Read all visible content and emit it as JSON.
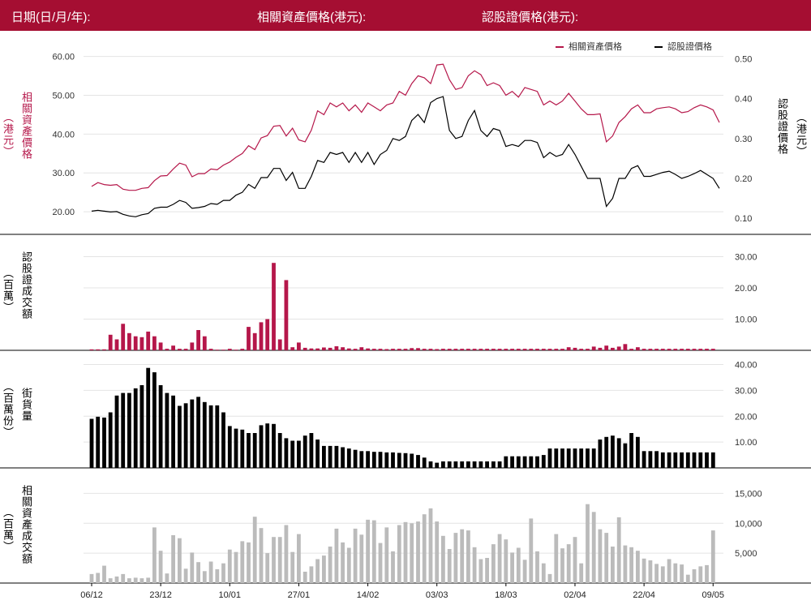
{
  "header": {
    "date_label": "日期(日/月/年):",
    "underlying_label": "相關資產價格(港元):",
    "warrant_label": "認股證價格(港元):"
  },
  "legend": {
    "underlying": "相關資產價格",
    "warrant": "認股證價格"
  },
  "colors": {
    "brand": "#a50e32",
    "underlying": "#b5174a",
    "warrant": "#000000",
    "turnover_bar": "#bbbbbb"
  },
  "axis_titles": {
    "underlying_price_a": "相關資產價格",
    "underlying_price_b": "（港元）",
    "warrant_price_a": "認股證價格",
    "warrant_price_b": "（港元）",
    "warrant_turnover_a": "認股證成交額",
    "warrant_turnover_b": "（百萬）",
    "outstanding_a": "街貨量",
    "outstanding_b": "（百萬份）",
    "underlying_turnover_a": "相關資產成交額",
    "underlying_turnover_b": "（百萬）"
  },
  "chart_data": {
    "type": "line",
    "x_tick_labels": [
      "06/12",
      "23/12",
      "10/01",
      "27/01",
      "14/02",
      "03/03",
      "18/03",
      "02/04",
      "22/04",
      "09/05"
    ],
    "x_tick_index": [
      0,
      11,
      22,
      33,
      44,
      55,
      66,
      77,
      88,
      99
    ],
    "panels": [
      {
        "id": "price",
        "type": "line",
        "series": [
          {
            "name": "相關資產價格",
            "axis": "left",
            "values": [
              26.5,
              27.5,
              27,
              26.8,
              27,
              25.8,
              25.5,
              25.5,
              26,
              26.2,
              28,
              29.2,
              29.3,
              31,
              32.5,
              32,
              29,
              29.8,
              29.8,
              31,
              30.8,
              32,
              32.8,
              34,
              35,
              37,
              36,
              39,
              39.6,
              42,
              42.2,
              39.5,
              41.5,
              38.5,
              38,
              41,
              46,
              45,
              48,
              47,
              48,
              46,
              47.5,
              45.6,
              48,
              47,
              46,
              47.5,
              48,
              51,
              50,
              53,
              55,
              54.5,
              53,
              57.8,
              58,
              54,
              51.5,
              52,
              55,
              56.3,
              55.3,
              52.5,
              53.2,
              52.5,
              50,
              51,
              49.5,
              52,
              51.5,
              51,
              47.5,
              48.5,
              47.5,
              48.5,
              50.5,
              48.5,
              46.5,
              45,
              45,
              45.2,
              38,
              39.5,
              43,
              44.5,
              46.5,
              47.5,
              45.5,
              45.5,
              46.5,
              46.8,
              47,
              46.5,
              45.5,
              45.8,
              46.8,
              47.5,
              47,
              46.2,
              43
            ]
          },
          {
            "name": "認股證價格",
            "axis": "right",
            "values": [
              0.118,
              0.12,
              0.118,
              0.116,
              0.117,
              0.11,
              0.106,
              0.104,
              0.109,
              0.112,
              0.125,
              0.128,
              0.128,
              0.135,
              0.145,
              0.14,
              0.125,
              0.127,
              0.13,
              0.137,
              0.135,
              0.145,
              0.145,
              0.158,
              0.165,
              0.185,
              0.175,
              0.202,
              0.202,
              0.225,
              0.225,
              0.195,
              0.215,
              0.175,
              0.175,
              0.205,
              0.245,
              0.24,
              0.265,
              0.26,
              0.265,
              0.24,
              0.265,
              0.24,
              0.265,
              0.235,
              0.26,
              0.27,
              0.3,
              0.295,
              0.305,
              0.345,
              0.36,
              0.34,
              0.39,
              0.4,
              0.405,
              0.32,
              0.3,
              0.305,
              0.345,
              0.37,
              0.32,
              0.305,
              0.325,
              0.32,
              0.28,
              0.285,
              0.28,
              0.295,
              0.295,
              0.29,
              0.252,
              0.265,
              0.255,
              0.26,
              0.285,
              0.26,
              0.23,
              0.2,
              0.2,
              0.2,
              0.13,
              0.15,
              0.2,
              0.2,
              0.225,
              0.232,
              0.205,
              0.205,
              0.21,
              0.215,
              0.218,
              0.21,
              0.2,
              0.205,
              0.212,
              0.22,
              0.21,
              0.2,
              0.175
            ]
          }
        ],
        "left_axis": {
          "ticks": [
            20,
            30,
            40,
            50,
            60
          ],
          "labels": [
            "20.00",
            "30.00",
            "40.00",
            "50.00",
            "60.00"
          ],
          "range": [
            15,
            62
          ]
        },
        "right_axis": {
          "ticks": [
            0.1,
            0.2,
            0.3,
            0.4,
            0.5
          ],
          "labels": [
            "0.10",
            "0.20",
            "0.30",
            "0.40",
            "0.50"
          ],
          "range": [
            0.068,
            0.525
          ]
        }
      },
      {
        "id": "warrant_turnover",
        "type": "bar",
        "values": [
          0.3,
          0.3,
          0.3,
          5,
          3.5,
          8.5,
          5.5,
          4.5,
          4.2,
          6,
          4.5,
          2.5,
          0.5,
          1.5,
          0.5,
          0.5,
          2.5,
          6.5,
          4.5,
          0.5,
          0.2,
          0.2,
          0.5,
          0.2,
          0.5,
          7.5,
          5.5,
          9,
          10,
          28,
          3.5,
          22.5,
          1,
          2.5,
          0.8,
          0.6,
          0.6,
          0.9,
          0.8,
          1.3,
          1,
          0.6,
          0.5,
          1,
          0.6,
          0.5,
          0.5,
          0.4,
          0.5,
          0.5,
          0.5,
          0.7,
          0.7,
          0.5,
          0.5,
          0.4,
          0.5,
          0.5,
          0.5,
          0.5,
          0.5,
          0.5,
          0.5,
          0.5,
          0.5,
          0.5,
          0.5,
          0.5,
          0.5,
          0.5,
          0.5,
          0.5,
          0.5,
          0.5,
          0.5,
          0.5,
          1,
          0.8,
          0.5,
          0.5,
          1.2,
          0.8,
          1.5,
          0.8,
          1.2,
          2,
          0.5,
          1,
          0.5,
          0.5,
          0.5,
          0.5,
          0.5,
          0.5,
          0.5,
          0.5,
          0.5,
          0.5,
          0.5,
          0.5
        ],
        "right_axis": {
          "ticks": [
            10,
            20,
            30
          ],
          "labels": [
            "10.00",
            "20.00",
            "30.00"
          ],
          "range": [
            0,
            33
          ]
        }
      },
      {
        "id": "outstanding",
        "type": "bar",
        "values": [
          19,
          19.8,
          19.5,
          21.5,
          28,
          29,
          29,
          30.8,
          32,
          38.7,
          37,
          32,
          29,
          28,
          24,
          25,
          26.5,
          27.5,
          25.5,
          24.2,
          24.2,
          21.5,
          16.2,
          15.2,
          14.8,
          13.5,
          13.5,
          16.5,
          17.2,
          17,
          13.5,
          11.5,
          10.5,
          10.5,
          12.5,
          13.5,
          11,
          8.5,
          8.5,
          8.5,
          8,
          7.5,
          7,
          6.5,
          6.5,
          6.2,
          6.2,
          6,
          6,
          5.8,
          5.7,
          5.5,
          5,
          4,
          2.5,
          2,
          2.5,
          2.5,
          2.5,
          2.5,
          2.5,
          2.5,
          2.5,
          2.5,
          2.5,
          2.5,
          4.5,
          4.5,
          4.5,
          4.5,
          4.5,
          4.5,
          5,
          7.5,
          7.5,
          7.5,
          7.5,
          7.5,
          7.5,
          7.5,
          7.5,
          11,
          12,
          12.5,
          11.5,
          9.5,
          13.5,
          12,
          6.5,
          6.5,
          6.5,
          6,
          6,
          6,
          6,
          6,
          6,
          6,
          6,
          6
        ],
        "right_axis": {
          "ticks": [
            10,
            20,
            30,
            40
          ],
          "labels": [
            "10.00",
            "20.00",
            "30.00",
            "40.00"
          ],
          "range": [
            0,
            43
          ]
        }
      },
      {
        "id": "underlying_turnover",
        "type": "bar",
        "values": [
          1500,
          1700,
          2900,
          800,
          1100,
          1500,
          800,
          900,
          800,
          900,
          9300,
          5400,
          1600,
          8000,
          7500,
          2400,
          5100,
          3500,
          2000,
          3600,
          2300,
          3300,
          5600,
          5200,
          7000,
          6800,
          11100,
          9200,
          5000,
          7700,
          7700,
          9700,
          5200,
          8200,
          1900,
          2800,
          4000,
          4600,
          6100,
          9100,
          6800,
          5900,
          9100,
          8100,
          10600,
          10500,
          6700,
          9300,
          5300,
          9700,
          10200,
          10000,
          10300,
          11500,
          12500,
          10300,
          7900,
          5700,
          8400,
          9000,
          8800,
          6000,
          4000,
          4200,
          6500,
          8200,
          7300,
          5100,
          5900,
          3900,
          10800,
          5300,
          3300,
          1500,
          8200,
          5800,
          6500,
          7700,
          3300,
          13200,
          11900,
          9000,
          8400,
          6100,
          11000,
          6300,
          6000,
          5400,
          4100,
          3800,
          3200,
          2800,
          4000,
          3300,
          3100,
          1400,
          2300,
          2800,
          3000,
          8800
        ],
        "right_axis": {
          "ticks": [
            5000,
            10000,
            15000
          ],
          "labels": [
            "5,000",
            "10,000",
            "15,000"
          ],
          "range": [
            0,
            17500
          ]
        }
      }
    ]
  }
}
